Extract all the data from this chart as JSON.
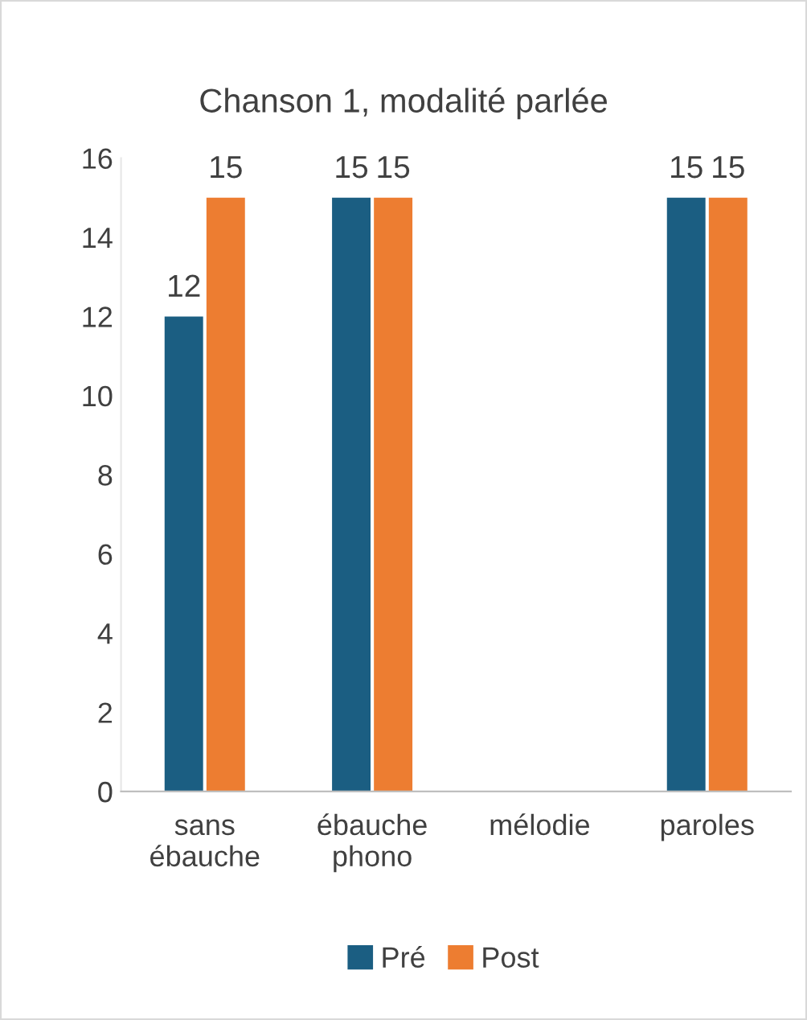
{
  "chart_data": {
    "type": "bar",
    "title": "Chanson 1, modalité parlée",
    "categories": [
      "sans ébauche",
      "ébauche phono",
      "mélodie",
      "paroles"
    ],
    "series": [
      {
        "name": "Pré",
        "color": "#1b5e82",
        "values": [
          12,
          15,
          null,
          15
        ]
      },
      {
        "name": "Post",
        "color": "#ed7d31",
        "values": [
          15,
          15,
          null,
          15
        ]
      }
    ],
    "ylim": [
      0,
      16
    ],
    "yticks": [
      0,
      2,
      4,
      6,
      8,
      10,
      12,
      14,
      16
    ],
    "grid": false,
    "legend": "bottom",
    "data_labels": true
  }
}
